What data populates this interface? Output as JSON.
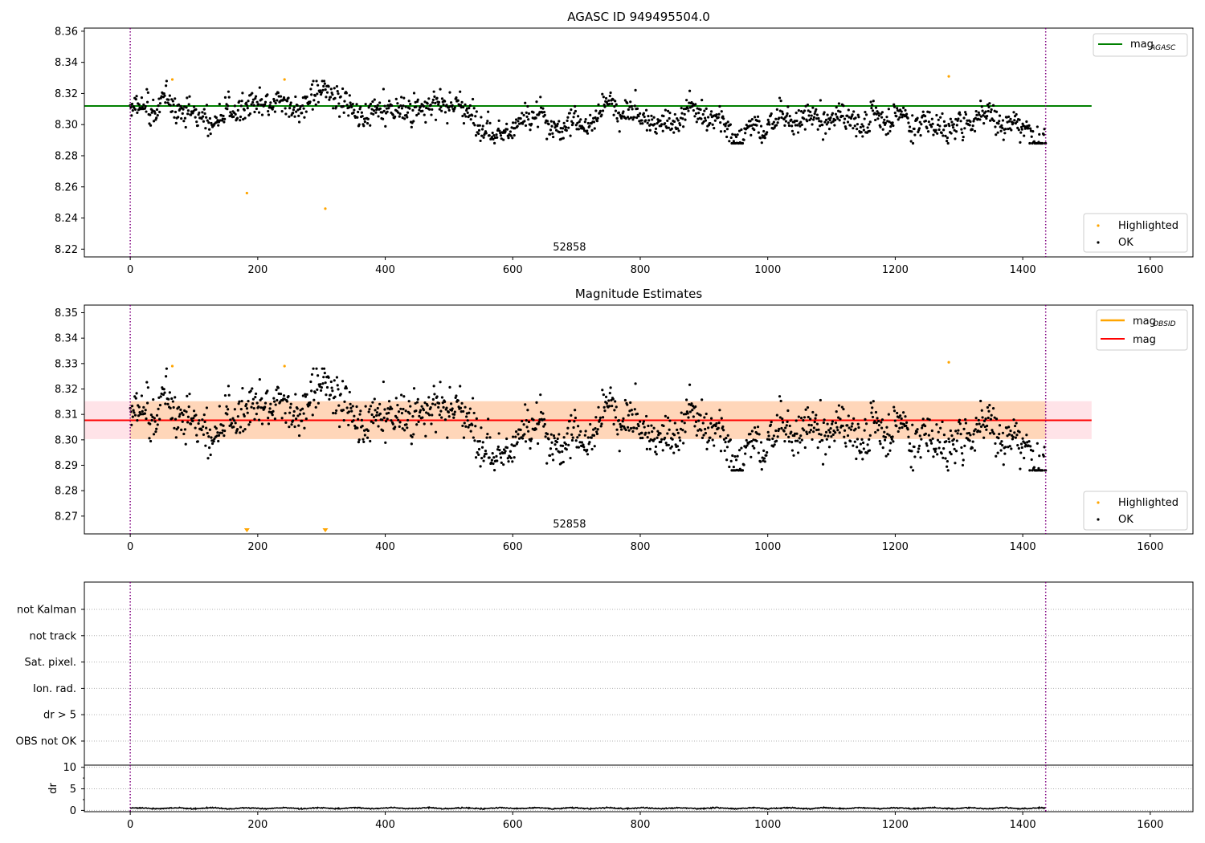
{
  "chart_data": [
    {
      "type": "scatter",
      "title": "AGASC ID 949495504.0",
      "xlabel": "",
      "ylabel": "",
      "xlim": [
        -72,
        1667
      ],
      "ylim": [
        8.215,
        8.362
      ],
      "xticks": [
        "0",
        "200",
        "400",
        "600",
        "800",
        "1000",
        "1200",
        "1400",
        "1600"
      ],
      "xtick_values": [
        0,
        200,
        400,
        600,
        800,
        1000,
        1200,
        1400,
        1600
      ],
      "yticks": [
        "8.22",
        "8.24",
        "8.26",
        "8.28",
        "8.30",
        "8.32",
        "8.34",
        "8.36"
      ],
      "ytick_values": [
        8.22,
        8.24,
        8.26,
        8.28,
        8.3,
        8.32,
        8.34,
        8.36
      ],
      "annotation": "52858",
      "obsid_boundaries": [
        0,
        1436
      ],
      "reference_line": {
        "name": "mag",
        "subscript": "AGASC",
        "y": 8.312,
        "x_range": [
          -72,
          1508
        ],
        "color": "#008000"
      },
      "series": [
        {
          "name": "Highlighted",
          "color": "#ffa500",
          "x": [
            66,
            242,
            183,
            306,
            1284
          ],
          "y": [
            8.329,
            8.329,
            8.256,
            8.246,
            8.331
          ]
        },
        {
          "name": "OK",
          "color": "#000000",
          "n_points": 1436,
          "x_range": [
            0,
            1436
          ],
          "y_center": 8.307,
          "y_spread": 0.007,
          "y_range": [
            8.288,
            8.328
          ]
        }
      ],
      "legends": [
        {
          "placement": "top-right",
          "entries": [
            "mag_AGASC"
          ]
        },
        {
          "placement": "bottom-right",
          "entries": [
            "Highlighted",
            "OK"
          ]
        }
      ],
      "grid": false
    },
    {
      "type": "scatter",
      "title": "Magnitude Estimates",
      "xlabel": "",
      "ylabel": "",
      "xlim": [
        -72,
        1667
      ],
      "ylim": [
        8.263,
        8.353
      ],
      "xticks": [
        "0",
        "200",
        "400",
        "600",
        "800",
        "1000",
        "1200",
        "1400",
        "1600"
      ],
      "xtick_values": [
        0,
        200,
        400,
        600,
        800,
        1000,
        1200,
        1400,
        1600
      ],
      "yticks": [
        "8.27",
        "8.28",
        "8.29",
        "8.30",
        "8.31",
        "8.32",
        "8.33",
        "8.34",
        "8.35"
      ],
      "ytick_values": [
        8.27,
        8.28,
        8.29,
        8.3,
        8.31,
        8.32,
        8.33,
        8.34,
        8.35
      ],
      "annotation": "52858",
      "obsid_boundaries": [
        0,
        1436
      ],
      "mag_line": {
        "name": "mag",
        "y": 8.3077,
        "x_range": [
          -72,
          1508
        ],
        "color": "#ff0000",
        "band": [
          8.3003,
          8.3152
        ],
        "band_color": "#ffc0cb"
      },
      "mag_obsid_line": {
        "name": "mag",
        "subscript": "OBSID",
        "y": 8.3077,
        "x_range": [
          0,
          1436
        ],
        "color": "#ffa500",
        "band": [
          8.3003,
          8.3152
        ],
        "band_color": "#ffa500"
      },
      "series": [
        {
          "name": "Highlighted",
          "color": "#ffa500",
          "x": [
            66,
            242,
            1284
          ],
          "y": [
            8.329,
            8.329,
            8.3305
          ]
        },
        {
          "name": "Highlighted (below range)",
          "color": "#ffa500",
          "marker": "triangle-down",
          "x": [
            183,
            306
          ],
          "y": [
            8.263,
            8.263
          ]
        },
        {
          "name": "OK",
          "color": "#000000",
          "n_points": 1436,
          "x_range": [
            0,
            1436
          ],
          "y_center": 8.307,
          "y_spread": 0.007,
          "y_range": [
            8.288,
            8.328
          ]
        }
      ],
      "legends": [
        {
          "placement": "top-right",
          "entries": [
            "mag_OBSID",
            "mag"
          ]
        },
        {
          "placement": "bottom-right",
          "entries": [
            "Highlighted",
            "OK"
          ]
        }
      ],
      "grid": false
    },
    {
      "type": "scatter",
      "title": "",
      "xlim": [
        -72,
        1667
      ],
      "flag_categories": [
        "not Kalman",
        "not track",
        "Sat. pixel.",
        "Ion. rad.",
        "dr > 5",
        "OBS not OK"
      ],
      "flagged_points": [],
      "obsid_boundaries": [
        0,
        1436
      ],
      "grid": "horizontal dotted"
    },
    {
      "type": "line",
      "title": "",
      "xlabel": "",
      "ylabel": "dr",
      "xlim": [
        -72,
        1667
      ],
      "ylim": [
        -0.3,
        10.5
      ],
      "xticks": [
        "0",
        "200",
        "400",
        "600",
        "800",
        "1000",
        "1200",
        "1400",
        "1600"
      ],
      "xtick_values": [
        0,
        200,
        400,
        600,
        800,
        1000,
        1200,
        1400,
        1600
      ],
      "yticks": [
        "0",
        "5",
        "10"
      ],
      "ytick_values": [
        0,
        5,
        10
      ],
      "obsid_boundaries": [
        0,
        1436
      ],
      "series": [
        {
          "color": "#000000",
          "n_points": 1436,
          "x_range": [
            0,
            1436
          ],
          "y_range": [
            0.1,
            0.8
          ]
        }
      ],
      "grid": "horizontal dotted"
    }
  ]
}
